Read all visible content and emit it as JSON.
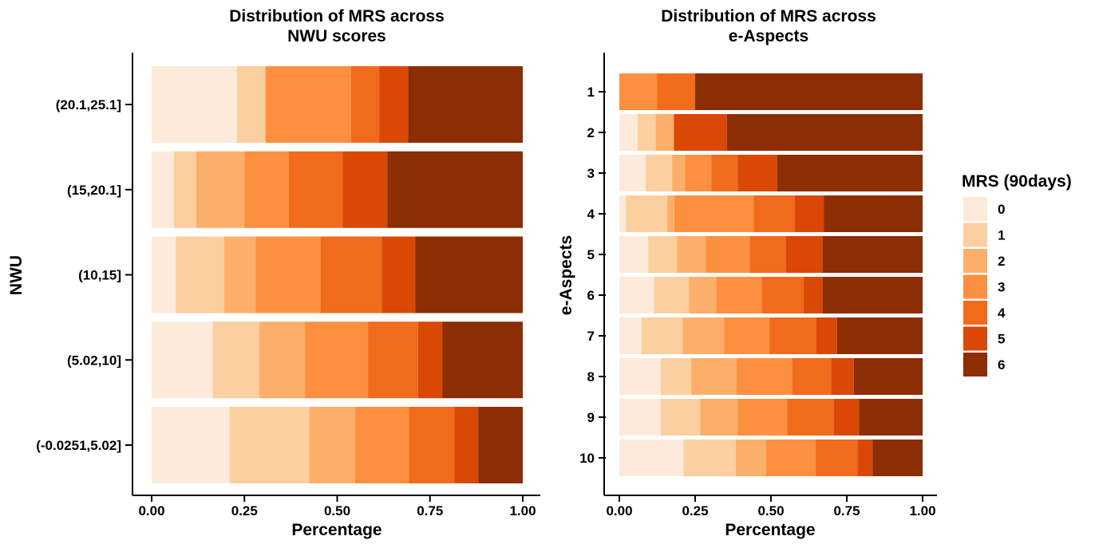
{
  "palette": [
    "#fdeadb",
    "#fbcf9f",
    "#fcaf6a",
    "#fc9040",
    "#f06b1c",
    "#d94805",
    "#8c2d04"
  ],
  "legend": {
    "title": "MRS (90days)",
    "items": [
      "0",
      "1",
      "2",
      "3",
      "4",
      "5",
      "6"
    ]
  },
  "chart_data": [
    {
      "type": "bar",
      "orientation": "horizontal",
      "stacked": true,
      "title_line1": "Distribution of MRS across",
      "title_line2": "NWU scores",
      "xlabel": "Percentage",
      "ylabel": "NWU",
      "xlim": [
        0,
        1
      ],
      "xticks": [
        "0.00",
        "0.25",
        "0.50",
        "0.75",
        "1.00"
      ],
      "categories": [
        "(20.1,25.1]",
        "(15,20.1]",
        "(10,15]",
        "(5.02,10]",
        "(-0.0251,5.02]"
      ],
      "series": [
        {
          "name": "0",
          "values": [
            0.23,
            0.06,
            0.065,
            0.165,
            0.21
          ]
        },
        {
          "name": "1",
          "values": [
            0.077,
            0.06,
            0.13,
            0.125,
            0.215
          ]
        },
        {
          "name": "2",
          "values": [
            0.0,
            0.13,
            0.085,
            0.123,
            0.123
          ]
        },
        {
          "name": "3",
          "values": [
            0.23,
            0.12,
            0.175,
            0.17,
            0.145
          ]
        },
        {
          "name": "4",
          "values": [
            0.077,
            0.145,
            0.165,
            0.135,
            0.123
          ]
        },
        {
          "name": "5",
          "values": [
            0.077,
            0.12,
            0.09,
            0.065,
            0.064
          ]
        },
        {
          "name": "6",
          "values": [
            0.309,
            0.365,
            0.29,
            0.217,
            0.12
          ]
        }
      ]
    },
    {
      "type": "bar",
      "orientation": "horizontal",
      "stacked": true,
      "title_line1": "Distribution of MRS across",
      "title_line2": "e-Aspects",
      "xlabel": "Percentage",
      "ylabel": "e-Aspects",
      "xlim": [
        0,
        1
      ],
      "xticks": [
        "0.00",
        "0.25",
        "0.50",
        "0.75",
        "1.00"
      ],
      "categories": [
        "1",
        "2",
        "3",
        "4",
        "5",
        "6",
        "7",
        "8",
        "9",
        "10"
      ],
      "series": [
        {
          "name": "0",
          "values": [
            0.0,
            0.06,
            0.087,
            0.022,
            0.095,
            0.115,
            0.073,
            0.137,
            0.137,
            0.212
          ]
        },
        {
          "name": "1",
          "values": [
            0.0,
            0.06,
            0.087,
            0.136,
            0.095,
            0.115,
            0.136,
            0.1,
            0.13,
            0.172
          ]
        },
        {
          "name": "2",
          "values": [
            0.0,
            0.06,
            0.043,
            0.023,
            0.095,
            0.09,
            0.136,
            0.15,
            0.123,
            0.1
          ]
        },
        {
          "name": "3",
          "values": [
            0.125,
            0.0,
            0.087,
            0.262,
            0.145,
            0.15,
            0.15,
            0.183,
            0.163,
            0.163
          ]
        },
        {
          "name": "4",
          "values": [
            0.125,
            0.0,
            0.087,
            0.136,
            0.12,
            0.138,
            0.155,
            0.128,
            0.155,
            0.138
          ]
        },
        {
          "name": "5",
          "values": [
            0.0,
            0.175,
            0.13,
            0.096,
            0.12,
            0.063,
            0.068,
            0.075,
            0.083,
            0.05
          ]
        },
        {
          "name": "6",
          "values": [
            0.75,
            0.645,
            0.479,
            0.325,
            0.33,
            0.329,
            0.282,
            0.227,
            0.209,
            0.165
          ]
        }
      ]
    }
  ]
}
